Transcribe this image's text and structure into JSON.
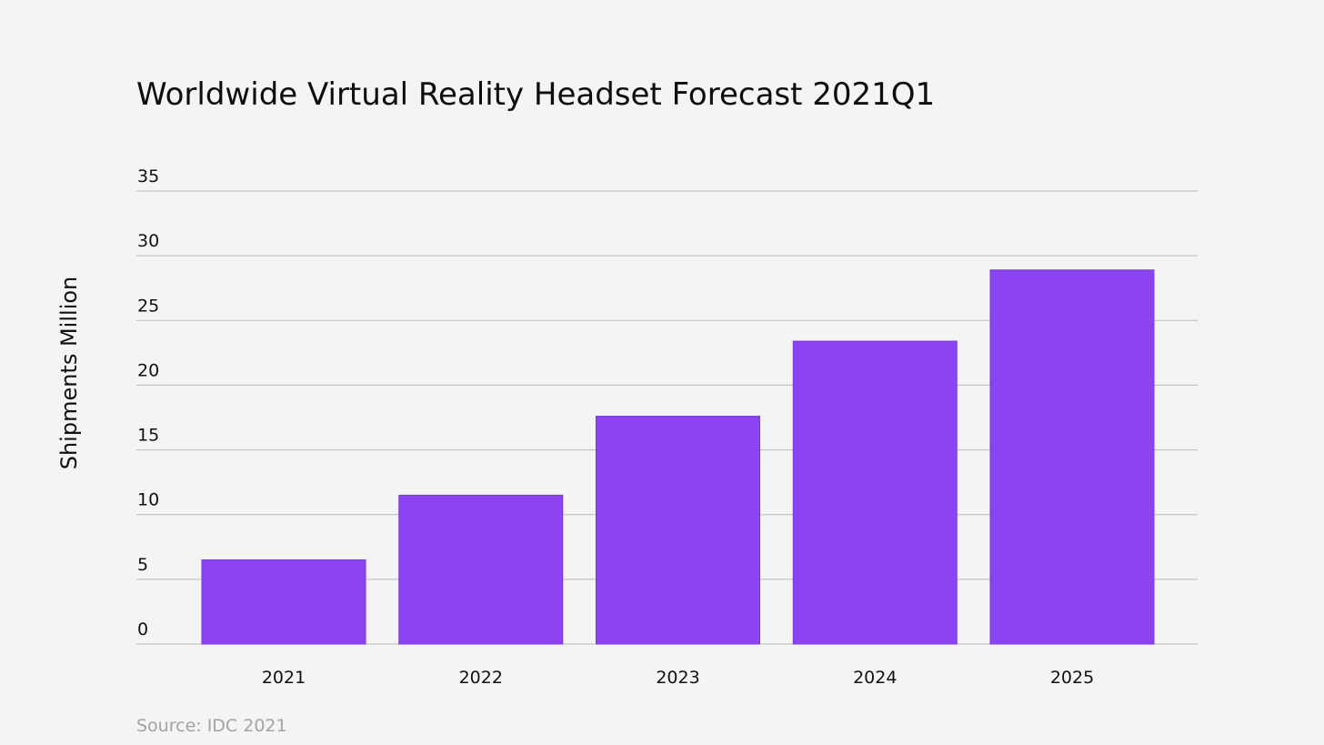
{
  "chart_data": {
    "type": "bar",
    "title": "Worldwide Virtual Reality Headset Forecast 2021Q1",
    "ylabel": "Shipments Million",
    "xlabel": "",
    "categories": [
      "2021",
      "2022",
      "2023",
      "2024",
      "2025"
    ],
    "values": [
      6.5,
      11.5,
      17.6,
      23.4,
      28.9
    ],
    "ylim": [
      0,
      35
    ],
    "yticks": [
      0,
      5,
      10,
      15,
      20,
      25,
      30,
      35
    ],
    "grid": true,
    "legend": "none",
    "bar_color": "#8c43f2",
    "gridline_color": "#b9b9b9",
    "source": "Source: IDC 2021"
  }
}
